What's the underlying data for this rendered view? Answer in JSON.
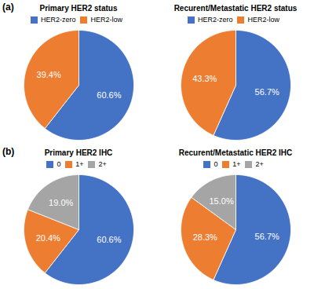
{
  "chart_data": [
    {
      "type": "pie",
      "title": "Primary HER2 status",
      "annotations": [
        "(a)"
      ],
      "categories": [
        "HER2-zero",
        "HER2-low"
      ],
      "values": [
        60.6,
        39.4
      ],
      "value_labels": [
        "60.6%",
        "39.4%"
      ],
      "colors": [
        "#4472C4",
        "#ED7D31"
      ],
      "data_labels": true,
      "legend": "top"
    },
    {
      "type": "pie",
      "title": "Recurent/Metastatic HER2 status",
      "categories": [
        "HER2-zero",
        "HER2-low"
      ],
      "values": [
        56.7,
        43.3
      ],
      "value_labels": [
        "56.7%",
        "43.3%"
      ],
      "colors": [
        "#4472C4",
        "#ED7D31"
      ],
      "data_labels": true,
      "legend": "top"
    },
    {
      "type": "pie",
      "title": "Primary HER2 IHC",
      "annotations": [
        "(b)"
      ],
      "categories": [
        "0",
        "1+",
        "2+"
      ],
      "values": [
        60.6,
        20.4,
        19.0
      ],
      "value_labels": [
        "60.6%",
        "20.4%",
        "19.0%"
      ],
      "colors": [
        "#4472C4",
        "#ED7D31",
        "#A5A5A5"
      ],
      "data_labels": true,
      "legend": "top"
    },
    {
      "type": "pie",
      "title": "Recurent/Metastatic HER2 IHC",
      "categories": [
        "0",
        "1+",
        "2+"
      ],
      "values": [
        56.7,
        28.3,
        15.0
      ],
      "value_labels": [
        "56.7%",
        "28.3%",
        "15.0%"
      ],
      "colors": [
        "#4472C4",
        "#ED7D31",
        "#A5A5A5"
      ],
      "data_labels": true,
      "legend": "top"
    }
  ]
}
